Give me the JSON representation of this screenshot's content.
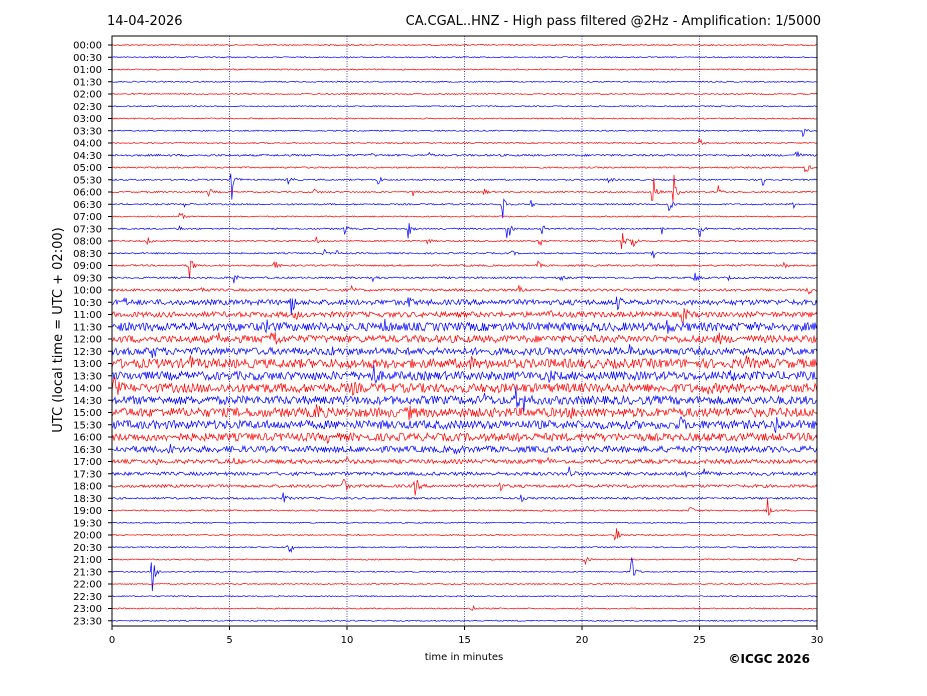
{
  "header": {
    "date": "14-04-2026",
    "title": "CA.CGAL..HNZ - High pass filtered @2Hz - Amplification: 1/5000"
  },
  "footer": {
    "copyright": "©ICGC 2026"
  },
  "chart_data": {
    "type": "line",
    "xlabel": "time in minutes",
    "ylabel": "UTC (local time = UTC + 02:00)",
    "xlim": [
      0,
      30
    ],
    "x_ticks": [
      0,
      5,
      10,
      15,
      20,
      25,
      30
    ],
    "x_tick_labels": [
      "0",
      "5",
      "10",
      "15",
      "20",
      "25",
      "30"
    ],
    "vertical_gridlines_at": [
      5,
      10,
      15,
      20,
      25
    ],
    "trace_colors": [
      "#ff0000",
      "#0000ff"
    ],
    "traces": [
      {
        "label": "00:00",
        "color": "#ff0000",
        "noise": 0.05,
        "events": []
      },
      {
        "label": "00:30",
        "color": "#0000ff",
        "noise": 0.05,
        "events": []
      },
      {
        "label": "01:00",
        "color": "#ff0000",
        "noise": 0.05,
        "events": []
      },
      {
        "label": "01:30",
        "color": "#0000ff",
        "noise": 0.05,
        "events": []
      },
      {
        "label": "02:00",
        "color": "#ff0000",
        "noise": 0.05,
        "events": []
      },
      {
        "label": "02:30",
        "color": "#0000ff",
        "noise": 0.05,
        "events": []
      },
      {
        "label": "03:00",
        "color": "#ff0000",
        "noise": 0.05,
        "events": []
      },
      {
        "label": "03:30",
        "color": "#0000ff",
        "noise": 0.05,
        "events": [
          {
            "t": 29.4,
            "a": 0.5
          }
        ]
      },
      {
        "label": "04:00",
        "color": "#ff0000",
        "noise": 0.05,
        "events": [
          {
            "t": 25.0,
            "a": 0.5
          }
        ]
      },
      {
        "label": "04:30",
        "color": "#0000ff",
        "noise": 0.08,
        "events": [
          {
            "t": 11.0,
            "a": 0.15
          },
          {
            "t": 13.5,
            "a": 0.15
          },
          {
            "t": 29.1,
            "a": 0.6
          }
        ]
      },
      {
        "label": "05:00",
        "color": "#ff0000",
        "noise": 0.06,
        "events": [
          {
            "t": 29.5,
            "a": 0.8
          }
        ]
      },
      {
        "label": "05:30",
        "color": "#0000ff",
        "noise": 0.06,
        "events": [
          {
            "t": 5.1,
            "a": 1.6
          },
          {
            "t": 7.5,
            "a": 0.6
          },
          {
            "t": 11.3,
            "a": 0.6
          },
          {
            "t": 21.1,
            "a": 0.5
          },
          {
            "t": 27.7,
            "a": 0.6
          }
        ]
      },
      {
        "label": "06:00",
        "color": "#ff0000",
        "noise": 0.06,
        "events": [
          {
            "t": 4.1,
            "a": 0.5
          },
          {
            "t": 8.6,
            "a": 0.3
          },
          {
            "t": 12.8,
            "a": 0.8
          },
          {
            "t": 15.8,
            "a": 0.4
          },
          {
            "t": 23.0,
            "a": 2.2
          },
          {
            "t": 23.9,
            "a": 1.6
          },
          {
            "t": 25.8,
            "a": 0.5
          }
        ]
      },
      {
        "label": "06:30",
        "color": "#0000ff",
        "noise": 0.06,
        "events": [
          {
            "t": 3.1,
            "a": 0.3
          },
          {
            "t": 16.6,
            "a": 1.8
          },
          {
            "t": 17.8,
            "a": 0.4
          },
          {
            "t": 23.7,
            "a": 0.8
          },
          {
            "t": 29.0,
            "a": 0.3
          }
        ]
      },
      {
        "label": "07:00",
        "color": "#ff0000",
        "noise": 0.05,
        "events": [
          {
            "t": 2.9,
            "a": 0.5
          }
        ]
      },
      {
        "label": "07:30",
        "color": "#0000ff",
        "noise": 0.06,
        "events": [
          {
            "t": 2.8,
            "a": 0.4
          },
          {
            "t": 9.9,
            "a": 0.5
          },
          {
            "t": 12.6,
            "a": 0.9
          },
          {
            "t": 16.8,
            "a": 1.8
          },
          {
            "t": 18.3,
            "a": 0.4
          },
          {
            "t": 23.4,
            "a": 0.4
          },
          {
            "t": 25.0,
            "a": 1.0
          }
        ]
      },
      {
        "label": "08:00",
        "color": "#ff0000",
        "noise": 0.06,
        "events": [
          {
            "t": 1.5,
            "a": 0.4
          },
          {
            "t": 8.7,
            "a": 0.3
          },
          {
            "t": 13.4,
            "a": 0.3
          },
          {
            "t": 18.2,
            "a": 0.5
          },
          {
            "t": 21.7,
            "a": 1.2
          },
          {
            "t": 22.1,
            "a": 1.8
          }
        ]
      },
      {
        "label": "08:30",
        "color": "#0000ff",
        "noise": 0.06,
        "events": [
          {
            "t": 9.0,
            "a": 0.4
          },
          {
            "t": 9.5,
            "a": 0.4
          },
          {
            "t": 17.0,
            "a": 0.3
          },
          {
            "t": 23.0,
            "a": 0.6
          }
        ]
      },
      {
        "label": "09:00",
        "color": "#ff0000",
        "noise": 0.07,
        "events": [
          {
            "t": 3.3,
            "a": 1.4
          },
          {
            "t": 6.9,
            "a": 0.5
          },
          {
            "t": 18.1,
            "a": 0.4
          },
          {
            "t": 28.6,
            "a": 0.3
          }
        ]
      },
      {
        "label": "09:30",
        "color": "#0000ff",
        "noise": 0.07,
        "events": [
          {
            "t": 5.2,
            "a": 0.5
          },
          {
            "t": 11.1,
            "a": 0.5
          },
          {
            "t": 19.1,
            "a": 0.3
          },
          {
            "t": 24.8,
            "a": 0.6
          },
          {
            "t": 26.2,
            "a": 0.2
          }
        ]
      },
      {
        "label": "10:00",
        "color": "#ff0000",
        "noise": 0.1,
        "events": [
          {
            "t": 3.8,
            "a": 0.5
          },
          {
            "t": 10.2,
            "a": 0.3
          },
          {
            "t": 17.3,
            "a": 0.4
          },
          {
            "t": 29.6,
            "a": 0.6
          }
        ]
      },
      {
        "label": "10:30",
        "color": "#0000ff",
        "noise": 0.22,
        "events": [
          {
            "t": 0.5,
            "a": 0.4
          },
          {
            "t": 7.6,
            "a": 1.3
          },
          {
            "t": 12.6,
            "a": 0.4
          },
          {
            "t": 21.5,
            "a": 0.6
          }
        ]
      },
      {
        "label": "11:00",
        "color": "#ff0000",
        "noise": 0.22,
        "events": [
          {
            "t": 7.8,
            "a": 0.4
          },
          {
            "t": 18.6,
            "a": 0.4
          },
          {
            "t": 24.3,
            "a": 1.4
          }
        ]
      },
      {
        "label": "11:30",
        "color": "#0000ff",
        "noise": 0.35,
        "events": [
          {
            "t": 6.6,
            "a": 0.6
          },
          {
            "t": 11.6,
            "a": 0.5
          },
          {
            "t": 23.6,
            "a": 0.5
          }
        ]
      },
      {
        "label": "12:00",
        "color": "#ff0000",
        "noise": 0.3,
        "events": [
          {
            "t": 6.8,
            "a": 2.2
          },
          {
            "t": 4.5,
            "a": 0.4
          },
          {
            "t": 25.8,
            "a": 0.4
          }
        ]
      },
      {
        "label": "12:30",
        "color": "#0000ff",
        "noise": 0.3,
        "events": [
          {
            "t": 1.7,
            "a": 0.6
          },
          {
            "t": 9.3,
            "a": 0.4
          },
          {
            "t": 22.0,
            "a": 0.4
          }
        ]
      },
      {
        "label": "13:00",
        "color": "#ff0000",
        "noise": 0.38,
        "events": [
          {
            "t": 3.3,
            "a": 0.6
          },
          {
            "t": 15.3,
            "a": 0.4
          },
          {
            "t": 27.0,
            "a": 0.4
          }
        ]
      },
      {
        "label": "13:30",
        "color": "#0000ff",
        "noise": 0.35,
        "events": [
          {
            "t": 11.1,
            "a": 1.2
          },
          {
            "t": 18.6,
            "a": 0.4
          },
          {
            "t": 26.3,
            "a": 0.4
          }
        ]
      },
      {
        "label": "14:00",
        "color": "#ff0000",
        "noise": 0.38,
        "events": [
          {
            "t": 0.1,
            "a": 1.2
          },
          {
            "t": 6.2,
            "a": 0.5
          },
          {
            "t": 10.2,
            "a": 0.5
          },
          {
            "t": 25.4,
            "a": 0.4
          }
        ]
      },
      {
        "label": "14:30",
        "color": "#0000ff",
        "noise": 0.35,
        "events": [
          {
            "t": 15.8,
            "a": 0.6
          },
          {
            "t": 17.2,
            "a": 1.0
          },
          {
            "t": 17.5,
            "a": 0.8
          }
        ]
      },
      {
        "label": "15:00",
        "color": "#ff0000",
        "noise": 0.38,
        "events": [
          {
            "t": 8.7,
            "a": 1.0
          },
          {
            "t": 12.6,
            "a": 0.5
          },
          {
            "t": 19.5,
            "a": 0.3
          }
        ]
      },
      {
        "label": "15:30",
        "color": "#0000ff",
        "noise": 0.35,
        "events": [
          {
            "t": 24.2,
            "a": 0.5
          },
          {
            "t": 28.2,
            "a": 1.2
          }
        ]
      },
      {
        "label": "16:00",
        "color": "#ff0000",
        "noise": 0.32,
        "events": [
          {
            "t": 17.2,
            "a": 1.0
          },
          {
            "t": 9.2,
            "a": 0.4
          }
        ]
      },
      {
        "label": "16:30",
        "color": "#0000ff",
        "noise": 0.26,
        "events": [
          {
            "t": 2.4,
            "a": 0.5
          },
          {
            "t": 14.6,
            "a": 0.3
          },
          {
            "t": 25.9,
            "a": 0.4
          }
        ]
      },
      {
        "label": "17:00",
        "color": "#ff0000",
        "noise": 0.17,
        "events": [
          {
            "t": 1.8,
            "a": 0.3
          },
          {
            "t": 5.2,
            "a": 0.3
          },
          {
            "t": 10.0,
            "a": 0.3
          },
          {
            "t": 18.5,
            "a": 0.4
          }
        ]
      },
      {
        "label": "17:30",
        "color": "#0000ff",
        "noise": 0.14,
        "events": [
          {
            "t": 19.4,
            "a": 1.2
          },
          {
            "t": 24.3,
            "a": 0.4
          },
          {
            "t": 25.2,
            "a": 0.4
          }
        ]
      },
      {
        "label": "18:00",
        "color": "#ff0000",
        "noise": 0.12,
        "events": [
          {
            "t": 9.8,
            "a": 1.2
          },
          {
            "t": 12.9,
            "a": 1.0
          },
          {
            "t": 16.5,
            "a": 0.4
          },
          {
            "t": 21.8,
            "a": 0.3
          }
        ]
      },
      {
        "label": "18:30",
        "color": "#0000ff",
        "noise": 0.08,
        "events": [
          {
            "t": 7.3,
            "a": 0.5
          },
          {
            "t": 17.4,
            "a": 0.3
          }
        ]
      },
      {
        "label": "19:00",
        "color": "#ff0000",
        "noise": 0.06,
        "events": [
          {
            "t": 24.6,
            "a": 0.5
          },
          {
            "t": 27.9,
            "a": 1.1
          }
        ]
      },
      {
        "label": "19:30",
        "color": "#0000ff",
        "noise": 0.05,
        "events": []
      },
      {
        "label": "20:00",
        "color": "#ff0000",
        "noise": 0.05,
        "events": [
          {
            "t": 21.4,
            "a": 1.6
          }
        ]
      },
      {
        "label": "20:30",
        "color": "#0000ff",
        "noise": 0.05,
        "events": [
          {
            "t": 7.5,
            "a": 1.3
          }
        ]
      },
      {
        "label": "21:00",
        "color": "#ff0000",
        "noise": 0.05,
        "events": [
          {
            "t": 20.1,
            "a": 0.5
          },
          {
            "t": 29.0,
            "a": 0.5
          }
        ]
      },
      {
        "label": "21:30",
        "color": "#0000ff",
        "noise": 0.05,
        "events": [
          {
            "t": 1.7,
            "a": 2.0
          },
          {
            "t": 22.1,
            "a": 1.6
          }
        ]
      },
      {
        "label": "22:00",
        "color": "#ff0000",
        "noise": 0.05,
        "events": []
      },
      {
        "label": "22:30",
        "color": "#0000ff",
        "noise": 0.05,
        "events": []
      },
      {
        "label": "23:00",
        "color": "#ff0000",
        "noise": 0.05,
        "events": [
          {
            "t": 15.3,
            "a": 0.4
          }
        ]
      },
      {
        "label": "23:30",
        "color": "#0000ff",
        "noise": 0.05,
        "events": []
      }
    ]
  }
}
